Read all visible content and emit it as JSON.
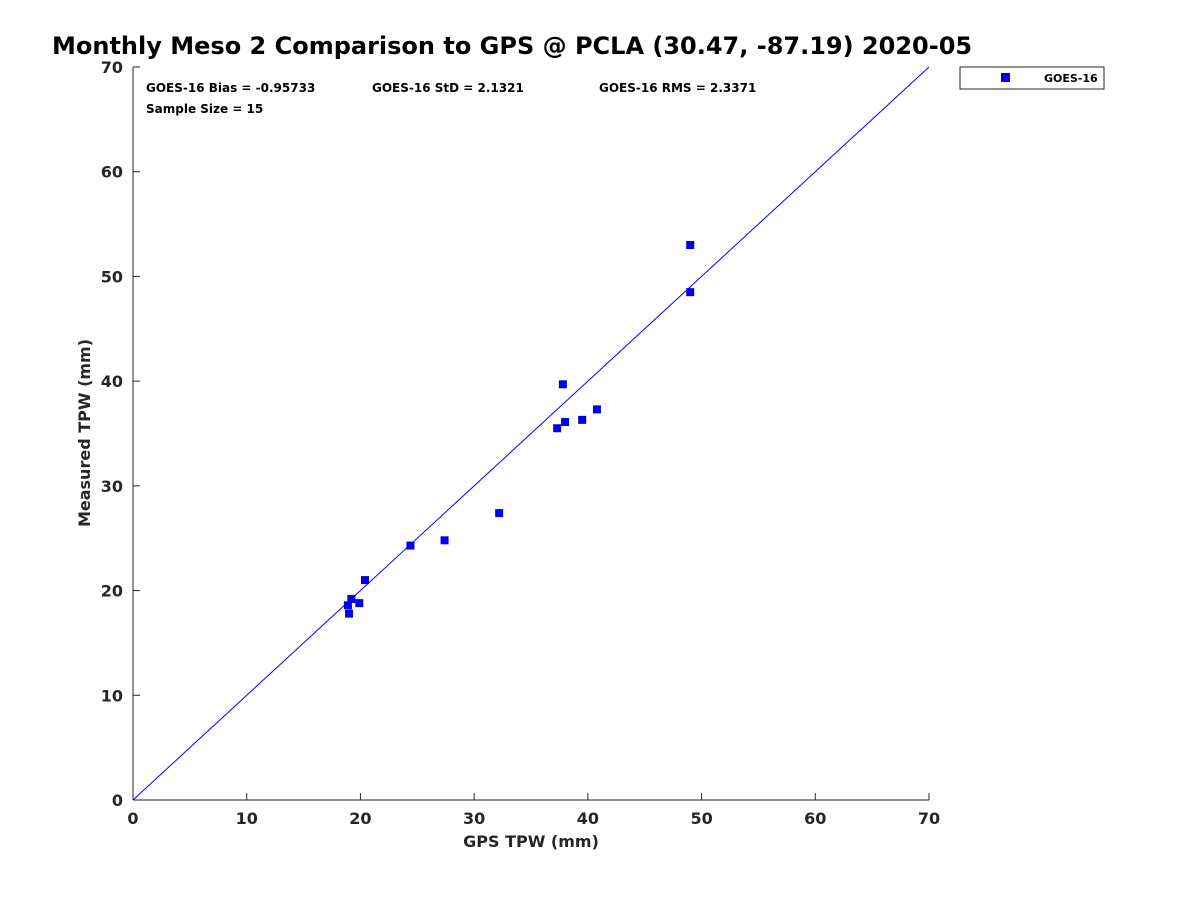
{
  "chart_data": {
    "type": "scatter",
    "title": "Monthly Meso 2 Comparison to GPS @ PCLA (30.47, -87.19) 2020-05",
    "xlabel": "GPS TPW (mm)",
    "ylabel": "Measured TPW (mm)",
    "xlim": [
      0,
      70
    ],
    "ylim": [
      0,
      70
    ],
    "xticks": [
      "0",
      "10",
      "20",
      "30",
      "40",
      "50",
      "60",
      "70"
    ],
    "yticks": [
      "0",
      "10",
      "20",
      "30",
      "40",
      "50",
      "60",
      "70"
    ],
    "grid": false,
    "legend_position": "outside-top-right",
    "reference_line": {
      "from": [
        0,
        0
      ],
      "to": [
        70,
        70
      ],
      "color": "#0000ff"
    },
    "series": [
      {
        "name": "GOES-16",
        "color": "#0000ee",
        "marker": "square",
        "x": [
          18.9,
          19.0,
          19.2,
          19.9,
          20.4,
          24.4,
          27.4,
          32.2,
          37.3,
          37.8,
          38.0,
          39.5,
          40.8,
          49.0,
          49.0
        ],
        "y": [
          18.6,
          17.8,
          19.2,
          18.8,
          21.0,
          24.3,
          24.8,
          27.4,
          35.5,
          39.7,
          36.1,
          36.3,
          37.3,
          48.5,
          53.0
        ]
      }
    ],
    "stats": {
      "bias": "GOES-16 Bias = -0.95733",
      "std": "GOES-16 StD = 2.1321",
      "rms": "GOES-16 RMS = 2.3371",
      "sample": "Sample Size = 15"
    }
  }
}
